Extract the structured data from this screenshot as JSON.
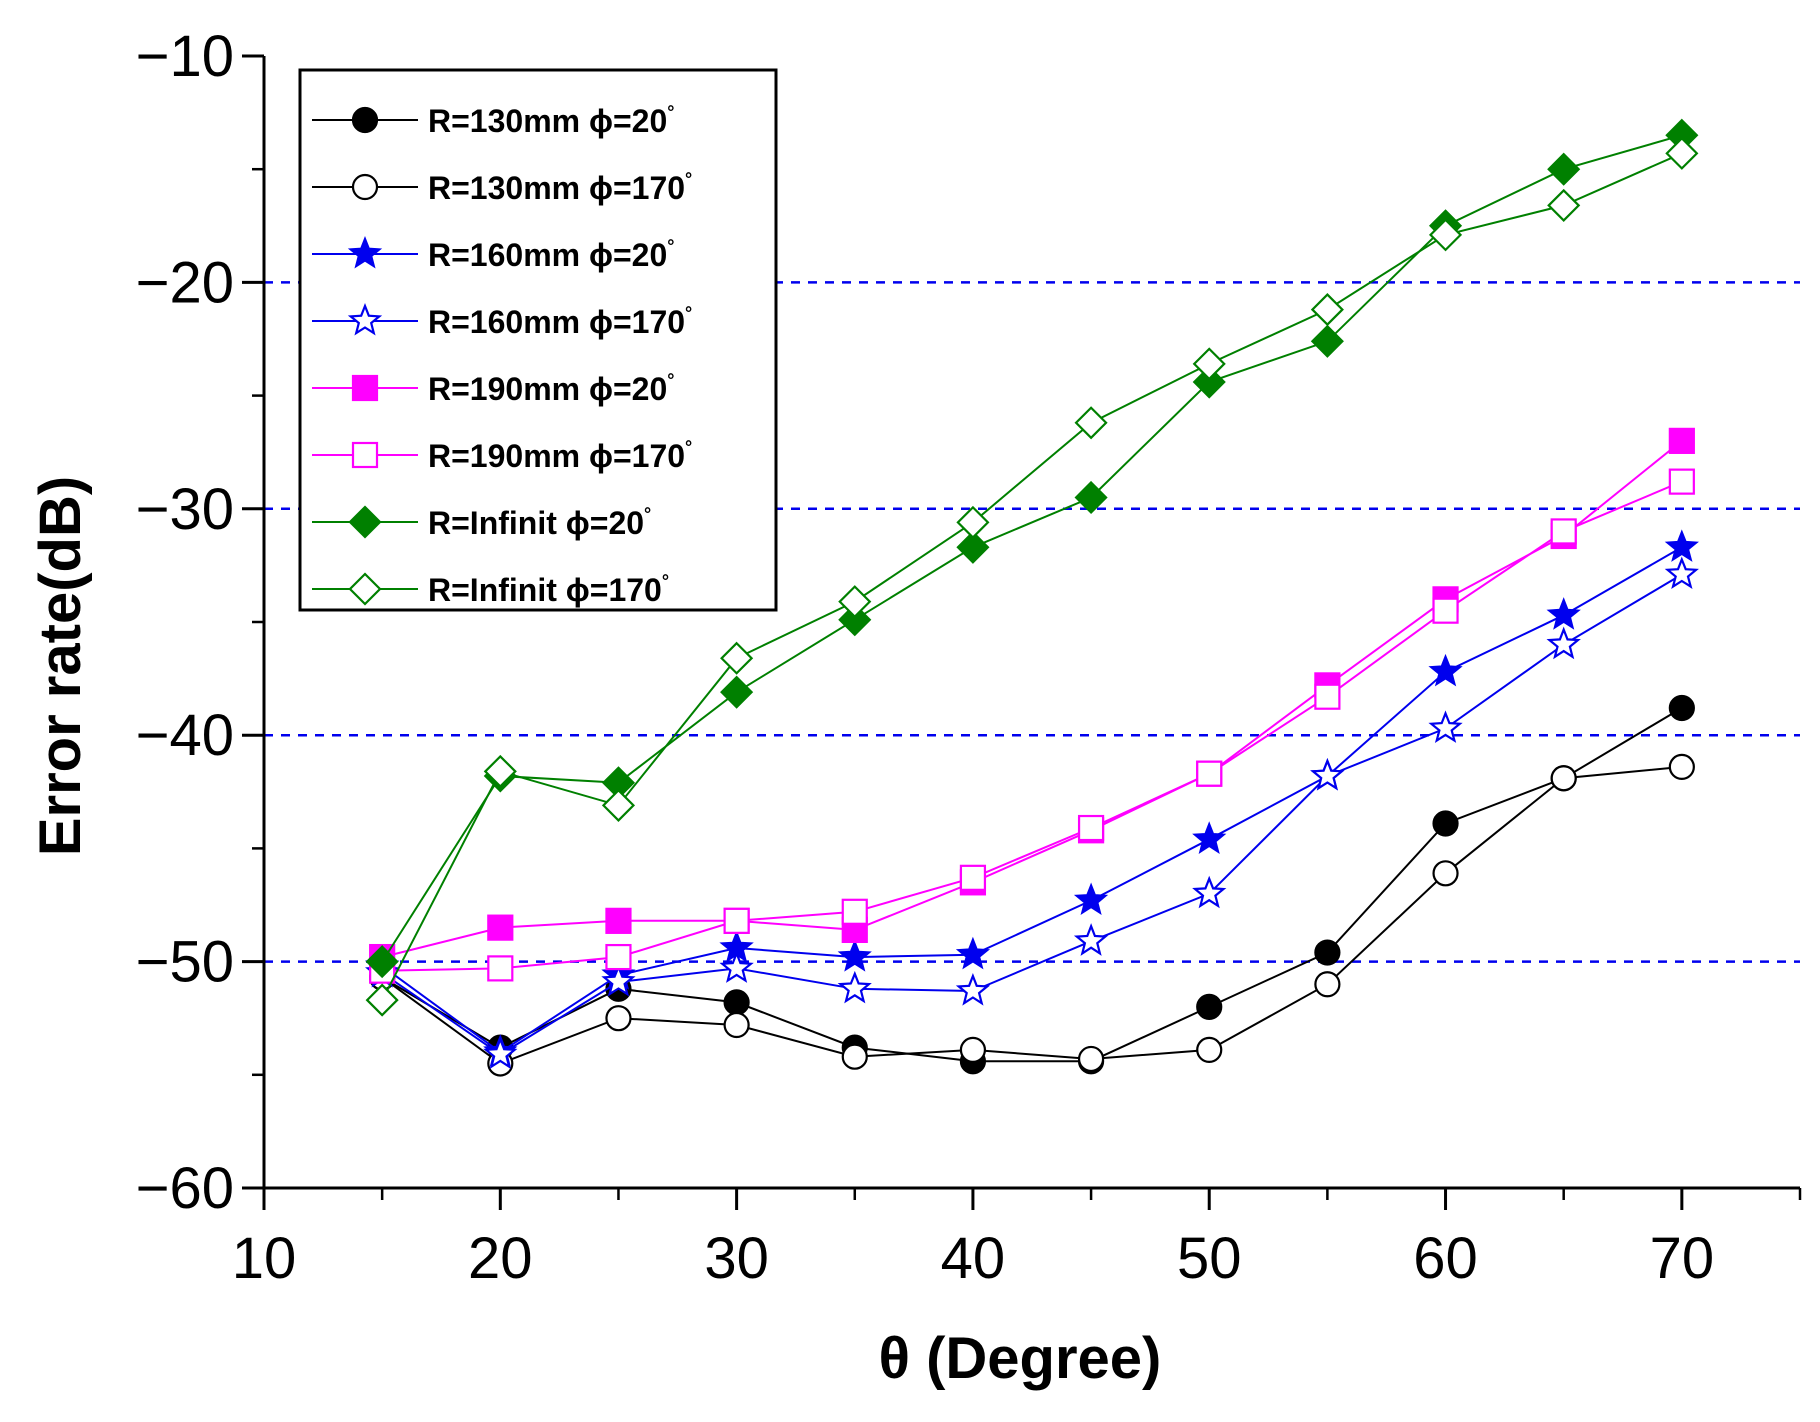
{
  "chart_data": {
    "type": "line",
    "title": "",
    "xlabel": "θ  (Degree)",
    "ylabel": "Error rate(dB)",
    "xlim": [
      10,
      75
    ],
    "ylim": [
      -60,
      -10
    ],
    "xticks": [
      10,
      20,
      30,
      40,
      50,
      60,
      70
    ],
    "yticks": [
      -60,
      -50,
      -40,
      -30,
      -20,
      -10
    ],
    "xtick_labels": [
      "10",
      "20",
      "30",
      "40",
      "50",
      "60",
      "70"
    ],
    "ytick_labels": [
      "−60",
      "−50",
      "−40",
      "−30",
      "−20",
      "−10"
    ],
    "gridlines_y": [
      -50,
      -40,
      -30,
      -20
    ],
    "grid_color": "#0000ee",
    "legend_position": "top-left",
    "x": [
      15,
      20,
      25,
      30,
      35,
      40,
      45,
      50,
      55,
      60,
      65,
      70
    ],
    "series": [
      {
        "name": "R=130mm ϕ=20°",
        "label_main": "R=130mm ",
        "label_phi": "ϕ=20",
        "color": "#000000",
        "marker": "circle",
        "filled": true,
        "values": [
          -50.7,
          -53.8,
          -51.2,
          -51.8,
          -53.8,
          -54.4,
          -54.4,
          -52.0,
          -49.6,
          -43.9,
          -41.9,
          -38.8
        ]
      },
      {
        "name": "R=130mm ϕ=170°",
        "label_main": "R=130mm ",
        "label_phi": "ϕ=170",
        "color": "#000000",
        "marker": "circle",
        "filled": false,
        "values": [
          -50.7,
          -54.5,
          -52.5,
          -52.8,
          -54.2,
          -53.9,
          -54.3,
          -53.9,
          -51.0,
          -46.1,
          -41.9,
          -41.4
        ]
      },
      {
        "name": "R=160mm ϕ=20°",
        "label_main": "R=160mm ",
        "label_phi": "ϕ=20",
        "color": "#0000ee",
        "marker": "star",
        "filled": true,
        "values": [
          -50.2,
          -54.0,
          -50.6,
          -49.4,
          -49.8,
          -49.7,
          -47.3,
          -44.6,
          -41.8,
          -37.2,
          -34.7,
          -31.7
        ]
      },
      {
        "name": "R=160mm ϕ=170°",
        "label_main": "R=160mm ",
        "label_phi": "ϕ=170",
        "color": "#0000ee",
        "marker": "star",
        "filled": false,
        "values": [
          -50.5,
          -54.1,
          -50.9,
          -50.3,
          -51.2,
          -51.3,
          -49.1,
          -47.0,
          -41.8,
          -39.7,
          -36.0,
          -32.9
        ]
      },
      {
        "name": "R=190mm ϕ=20°",
        "label_main": "R=190mm ",
        "label_phi": "ϕ=20",
        "color": "#ff00ff",
        "marker": "square",
        "filled": true,
        "values": [
          -49.8,
          -48.5,
          -48.2,
          -48.2,
          -48.6,
          -46.5,
          -44.2,
          -41.7,
          -37.8,
          -34.0,
          -31.2,
          -27.0
        ]
      },
      {
        "name": "R=190mm ϕ=170°",
        "label_main": "R=190mm ",
        "label_phi": "ϕ=170",
        "color": "#ff00ff",
        "marker": "square",
        "filled": false,
        "values": [
          -50.4,
          -50.3,
          -49.8,
          -48.2,
          -47.8,
          -46.3,
          -44.1,
          -41.7,
          -38.3,
          -34.5,
          -31.0,
          -28.8
        ]
      },
      {
        "name": "R=Infinit ϕ=20°",
        "label_main": "R=Infinit ",
        "label_phi": "ϕ=20",
        "color": "#008000",
        "marker": "diamond",
        "filled": true,
        "values": [
          -50.0,
          -41.8,
          -42.1,
          -38.1,
          -34.9,
          -31.7,
          -29.5,
          -24.4,
          -22.6,
          -17.5,
          -15.0,
          -13.5
        ]
      },
      {
        "name": "R=Infinit ϕ=170°",
        "label_main": "R=Infinit  ",
        "label_phi": "ϕ=170",
        "color": "#008000",
        "marker": "diamond",
        "filled": false,
        "values": [
          -51.7,
          -41.6,
          -43.1,
          -36.6,
          -34.1,
          -30.6,
          -26.2,
          -23.6,
          -21.2,
          -17.9,
          -16.6,
          -14.3
        ]
      }
    ]
  }
}
